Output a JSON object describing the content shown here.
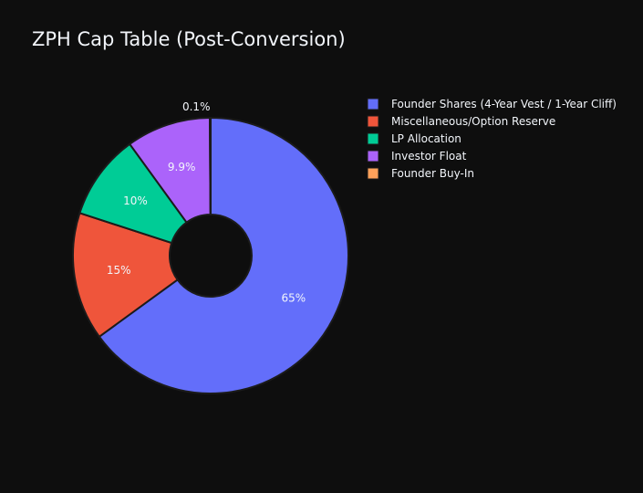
{
  "chart_data": {
    "type": "pie",
    "title": "ZPH Cap Table (Post-Conversion)",
    "hole": true,
    "legend_position": "top-right",
    "labels": [
      "Founder Shares (4-Year Vest / 1-Year Cliff)",
      "Miscellaneous/Option Reserve",
      "LP Allocation",
      "Investor Float",
      "Founder Buy-In"
    ],
    "values": [
      65,
      15,
      10,
      9.9,
      0.1
    ],
    "value_labels": [
      "65%",
      "15%",
      "10%",
      "9.9%",
      "0.1%"
    ],
    "colors": [
      "#636efa",
      "#ef553b",
      "#00cc96",
      "#ab63fa",
      "#ffa15a"
    ]
  }
}
